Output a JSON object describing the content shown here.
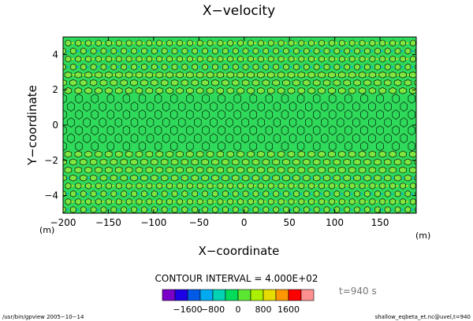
{
  "chart_data": {
    "type": "contour",
    "title": "X−velocity",
    "xlabel": "X−coordinate",
    "ylabel": "Y−coordinate",
    "x_unit": "(m)",
    "y_unit": "(m)",
    "xlim": [
      -200,
      190
    ],
    "ylim": [
      -5,
      5
    ],
    "x_ticks": [
      -200,
      -150,
      -100,
      -50,
      0,
      50,
      100,
      150
    ],
    "y_ticks": [
      -4,
      -2,
      0,
      2,
      4
    ],
    "x_tick_labels": [
      "−200",
      "−150",
      "−100",
      "−50",
      "0",
      "50",
      "100",
      "150"
    ],
    "y_tick_labels": [
      "−4",
      "−2",
      "0",
      "2",
      "4"
    ],
    "contour_interval_text": "CONTOUR INTERVAL = 4.000E+02",
    "time_text": "t=940 s",
    "colorbar": {
      "colors": [
        "#7a00c8",
        "#1e00e6",
        "#005ae6",
        "#00aaf0",
        "#00d2b4",
        "#00dc5a",
        "#5ae632",
        "#aaf000",
        "#e6dc00",
        "#ff9600",
        "#ff0000",
        "#ff9090"
      ],
      "tick_labels": [
        "−1600",
        "−800",
        "0",
        "800",
        "1600"
      ]
    }
  },
  "footer": {
    "left": "/usr/bin/gpview  2005−10−14",
    "right": "shallow_eqbeta_et.nc@uvel,t=940"
  }
}
